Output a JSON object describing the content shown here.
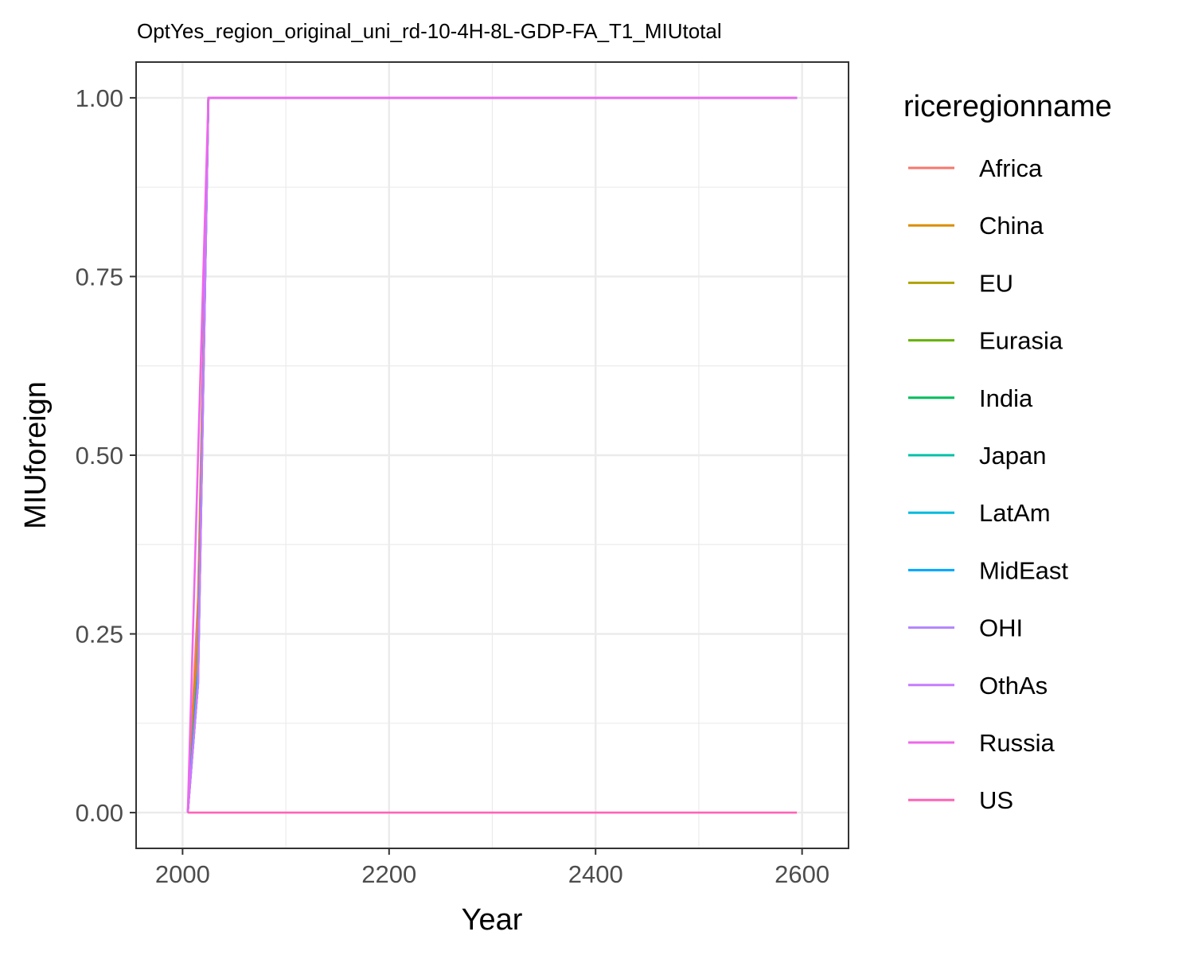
{
  "chart_data": {
    "type": "line",
    "title": "OptYes_region_original_uni_rd-10-4H-8L-GDP-FA_T1_MIUtotal",
    "xlabel": "Year",
    "ylabel": "MIUforeign",
    "xlim": [
      1955,
      2645
    ],
    "ylim": [
      -0.05,
      1.05
    ],
    "x_ticks": [
      2000,
      2200,
      2400,
      2600
    ],
    "x_tick_labels": [
      "2000",
      "2200",
      "2400",
      "2600"
    ],
    "y_ticks": [
      0,
      0.25,
      0.5,
      0.75,
      1
    ],
    "y_tick_labels": [
      "0.00",
      "0.25",
      "0.50",
      "0.75",
      "1.00"
    ],
    "grid": true,
    "legend": {
      "title": "riceregionname",
      "position": "right"
    },
    "series": [
      {
        "name": "Africa",
        "color": "#F8766D",
        "x": [
          2005,
          2015,
          2025,
          2595
        ],
        "y": [
          0,
          0.3,
          1,
          1
        ]
      },
      {
        "name": "China",
        "color": "#DB8E00",
        "x": [
          2005,
          2015,
          2025,
          2595
        ],
        "y": [
          0,
          0.25,
          1,
          1
        ]
      },
      {
        "name": "EU",
        "color": "#AEA200",
        "x": [
          2005,
          2015,
          2025,
          2595
        ],
        "y": [
          0,
          0.18,
          1,
          1
        ]
      },
      {
        "name": "Eurasia",
        "color": "#64B200",
        "x": [
          2005,
          2015,
          2025,
          2595
        ],
        "y": [
          0,
          0.2,
          1,
          1
        ]
      },
      {
        "name": "India",
        "color": "#00BD5C",
        "x": [
          2005,
          2015,
          2025,
          2595
        ],
        "y": [
          0,
          0.2,
          1,
          1
        ]
      },
      {
        "name": "Japan",
        "color": "#00C1A7",
        "x": [
          2005,
          2015,
          2025,
          2595
        ],
        "y": [
          0,
          0.18,
          1,
          1
        ]
      },
      {
        "name": "LatAm",
        "color": "#00BADE",
        "x": [
          2005,
          2015,
          2025,
          2595
        ],
        "y": [
          0,
          0.2,
          1,
          1
        ]
      },
      {
        "name": "MidEast",
        "color": "#00A6FF",
        "x": [
          2005,
          2015,
          2025,
          2595
        ],
        "y": [
          0,
          0.2,
          1,
          1
        ]
      },
      {
        "name": "OHI",
        "color": "#B385FF",
        "x": [
          2005,
          2015,
          2025,
          2595
        ],
        "y": [
          0,
          0.18,
          1,
          1
        ]
      },
      {
        "name": "OthAs",
        "color": "#C77CFF",
        "x": [
          2005,
          2015,
          2025,
          2595
        ],
        "y": [
          0,
          0.18,
          1,
          1
        ]
      },
      {
        "name": "Russia",
        "color": "#EF67EB",
        "x": [
          2005,
          2005,
          2025,
          2595
        ],
        "y": [
          0,
          0,
          1,
          1
        ]
      },
      {
        "name": "US",
        "color": "#FF63B6",
        "x": [
          2005,
          2595
        ],
        "y": [
          0,
          0
        ]
      }
    ]
  }
}
